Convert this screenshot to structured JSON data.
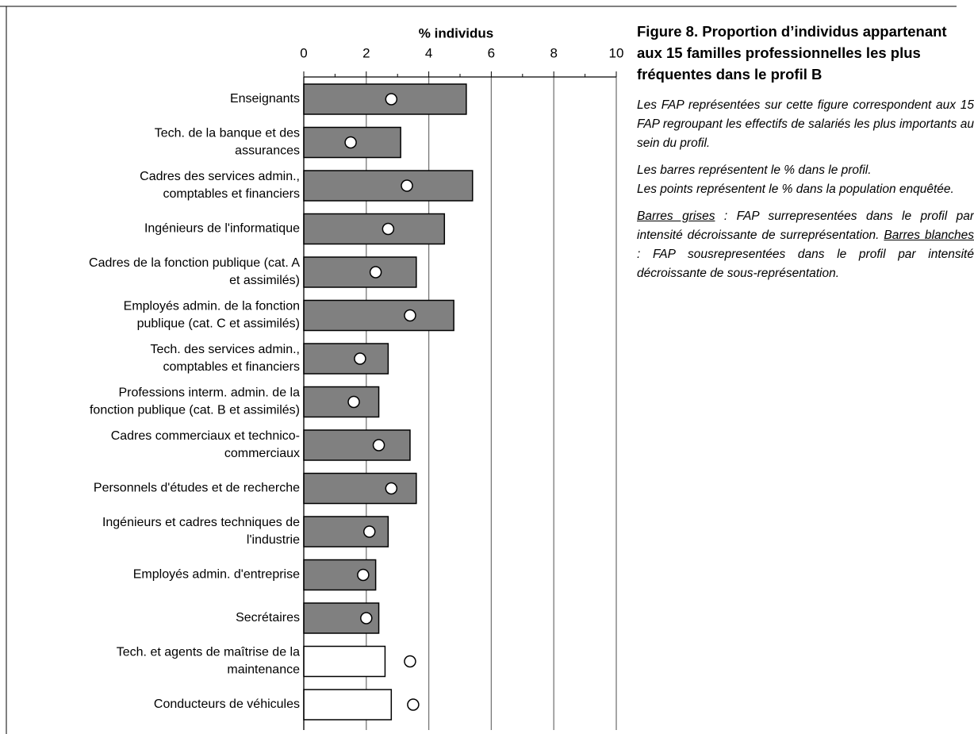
{
  "chart_data": {
    "type": "hbar-dot",
    "xlabel": "% individus",
    "categories": [
      [
        "Enseignants"
      ],
      [
        "Tech. de la banque et des",
        "assurances"
      ],
      [
        "Cadres des services admin.,",
        "comptables et financiers"
      ],
      [
        "Ingénieurs de l'informatique"
      ],
      [
        "Cadres de la fonction publique (cat. A",
        "et assimilés)"
      ],
      [
        "Employés admin. de la fonction",
        "publique (cat. C et assimilés)"
      ],
      [
        "Tech. des services admin.,",
        "comptables et financiers"
      ],
      [
        "Professions interm. admin. de la",
        "fonction publique (cat. B et assimilés)"
      ],
      [
        "Cadres commerciaux et technico-",
        "commerciaux"
      ],
      [
        "Personnels d'études et de recherche"
      ],
      [
        "Ingénieurs et cadres techniques de",
        "l'industrie"
      ],
      [
        "Employés admin. d'entreprise"
      ],
      [
        "Secrétaires"
      ],
      [
        "Tech. et agents de maîtrise de la",
        "maintenance"
      ],
      [
        "Conducteurs de véhicules"
      ]
    ],
    "bars": {
      "values": [
        5.2,
        3.1,
        5.4,
        4.5,
        3.6,
        4.8,
        2.7,
        2.4,
        3.4,
        3.6,
        2.7,
        2.3,
        2.4,
        2.6,
        2.8
      ],
      "colors": [
        "#808080",
        "#808080",
        "#808080",
        "#808080",
        "#808080",
        "#808080",
        "#808080",
        "#808080",
        "#808080",
        "#808080",
        "#808080",
        "#808080",
        "#808080",
        "#ffffff",
        "#ffffff"
      ]
    },
    "points": {
      "values": [
        2.8,
        1.5,
        3.3,
        2.7,
        2.3,
        3.4,
        1.8,
        1.6,
        2.4,
        2.8,
        2.1,
        1.9,
        2.0,
        3.4,
        3.5
      ],
      "color": "#ffffff"
    },
    "xlim": [
      0,
      10
    ],
    "xticks": [
      0,
      2,
      4,
      6,
      8,
      10
    ],
    "xminorticks": [
      1,
      3,
      5,
      7,
      9
    ],
    "grid": true
  },
  "caption": {
    "title": "Figure 8. Proportion d’individus appartenant aux 15 familles professionnelles les plus fréquentes dans le profil B",
    "paragraphs": [
      [
        "Les FAP représentées sur cette figure correspondent aux 15 FAP regroupant les effectifs de salariés les plus importants au sein du profil."
      ],
      [
        "Les barres représentent le % dans le profil.",
        "Les points représentent le % dans la population enquêtée."
      ]
    ],
    "legend_text": [
      "Barres grises",
      " :  FAP surrepresentées dans le profil par intensité décroissante de surreprésentation. ",
      "Barres blanches",
      " : FAP sousrepresentées dans le profil par intensité décroissante de sous-représentation."
    ]
  }
}
